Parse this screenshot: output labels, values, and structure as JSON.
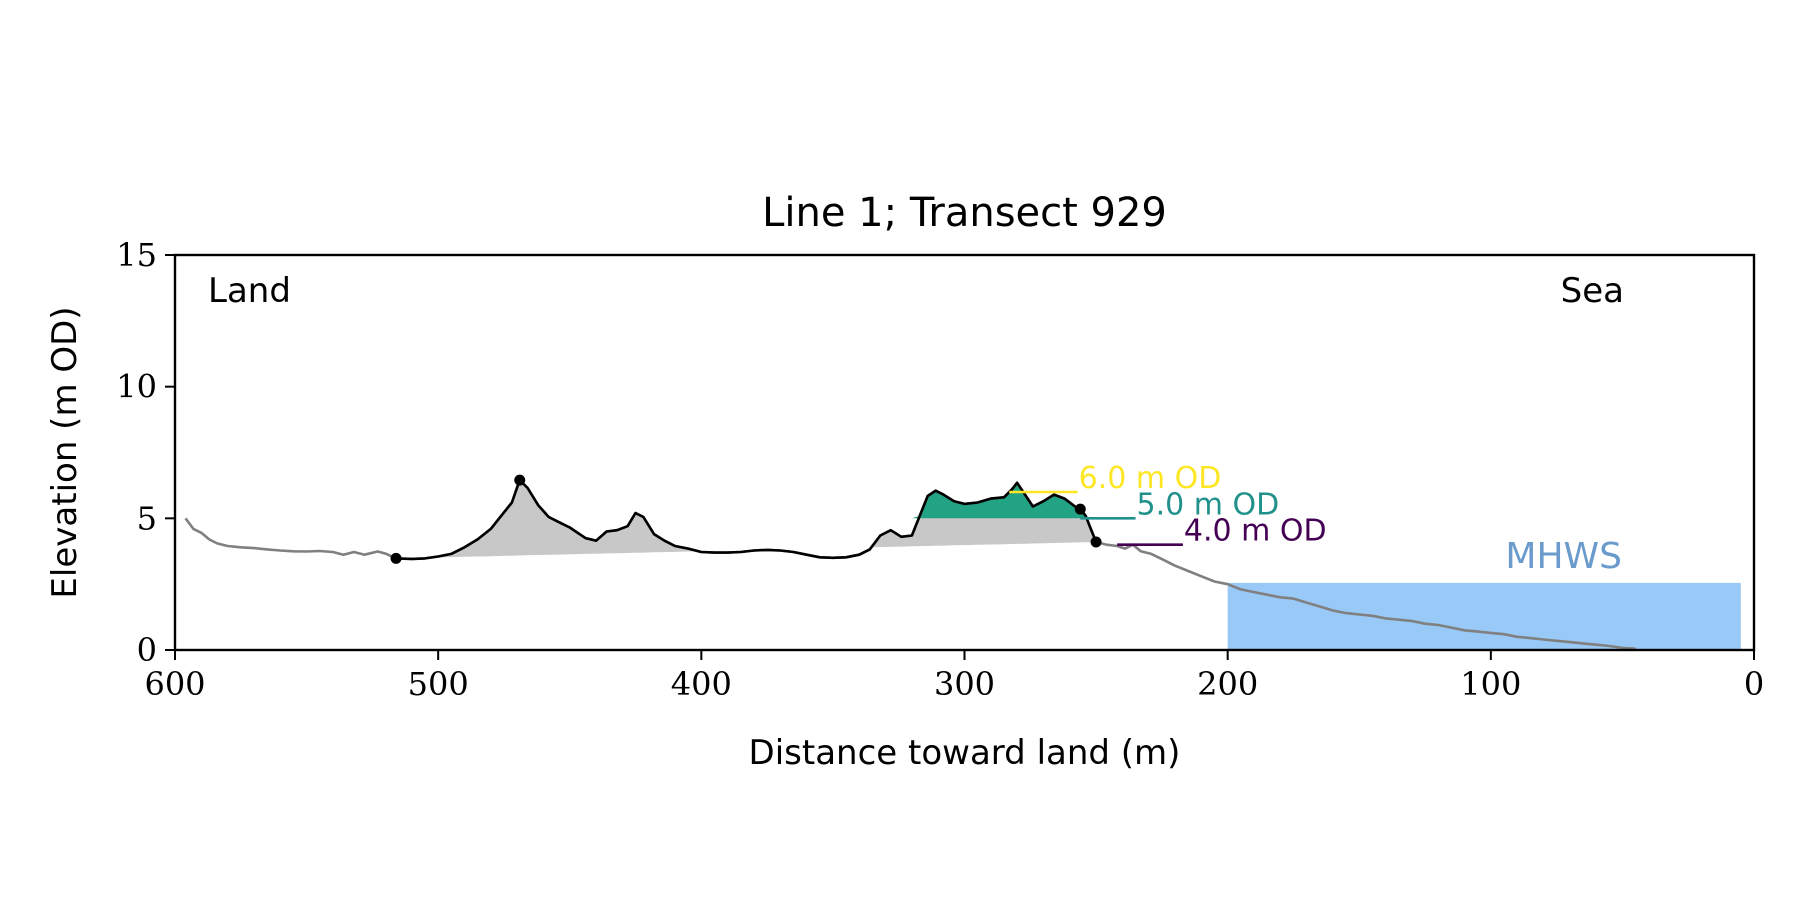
{
  "chart_data": {
    "type": "area",
    "title": "Line 1; Transect 929",
    "xlabel": "Distance toward land (m)",
    "ylabel": "Elevation (m OD)",
    "xlim": [
      600,
      0
    ],
    "ylim": [
      0,
      15
    ],
    "x_ticks": [
      600,
      500,
      400,
      300,
      200,
      100,
      0
    ],
    "y_ticks": [
      0,
      5,
      10,
      15
    ],
    "grid": false,
    "corner_labels": {
      "left": "Land",
      "right": "Sea"
    },
    "mhws": {
      "label": "MHWS",
      "elevation": 2.55,
      "x_from": 200,
      "x_to": 5,
      "color": "#99c9f7",
      "label_color": "#6a9bcc"
    },
    "profile_full": {
      "color": "#808080",
      "points": [
        [
          596,
          5.0
        ],
        [
          593,
          4.6
        ],
        [
          590,
          4.45
        ],
        [
          587,
          4.2
        ],
        [
          584,
          4.05
        ],
        [
          580,
          3.95
        ],
        [
          575,
          3.9
        ],
        [
          570,
          3.87
        ],
        [
          565,
          3.82
        ],
        [
          560,
          3.78
        ],
        [
          555,
          3.75
        ],
        [
          550,
          3.74
        ],
        [
          545,
          3.76
        ],
        [
          540,
          3.72
        ],
        [
          536,
          3.62
        ],
        [
          532,
          3.72
        ],
        [
          528,
          3.62
        ],
        [
          523,
          3.74
        ],
        [
          520,
          3.66
        ],
        [
          516,
          3.48
        ],
        [
          510,
          3.46
        ],
        [
          505,
          3.48
        ],
        [
          500,
          3.55
        ],
        [
          495,
          3.65
        ],
        [
          490,
          3.9
        ],
        [
          485,
          4.2
        ],
        [
          480,
          4.6
        ],
        [
          476,
          5.1
        ],
        [
          472,
          5.6
        ],
        [
          469,
          6.45
        ],
        [
          466,
          6.15
        ],
        [
          462,
          5.5
        ],
        [
          458,
          5.05
        ],
        [
          454,
          4.85
        ],
        [
          450,
          4.65
        ],
        [
          447,
          4.45
        ],
        [
          444,
          4.25
        ],
        [
          440,
          4.15
        ],
        [
          436,
          4.5
        ],
        [
          432,
          4.55
        ],
        [
          428,
          4.7
        ],
        [
          425,
          5.2
        ],
        [
          422,
          5.05
        ],
        [
          418,
          4.4
        ],
        [
          414,
          4.15
        ],
        [
          410,
          3.95
        ],
        [
          405,
          3.85
        ],
        [
          400,
          3.72
        ],
        [
          395,
          3.7
        ],
        [
          390,
          3.7
        ],
        [
          385,
          3.72
        ],
        [
          380,
          3.78
        ],
        [
          375,
          3.8
        ],
        [
          370,
          3.78
        ],
        [
          365,
          3.72
        ],
        [
          360,
          3.62
        ],
        [
          355,
          3.52
        ],
        [
          350,
          3.5
        ],
        [
          345,
          3.52
        ],
        [
          340,
          3.62
        ],
        [
          336,
          3.82
        ],
        [
          332,
          4.35
        ],
        [
          328,
          4.55
        ],
        [
          324,
          4.3
        ],
        [
          320,
          4.35
        ],
        [
          317,
          5.1
        ],
        [
          314,
          5.85
        ],
        [
          311,
          6.05
        ],
        [
          308,
          5.9
        ],
        [
          304,
          5.65
        ],
        [
          300,
          5.55
        ],
        [
          295,
          5.6
        ],
        [
          290,
          5.75
        ],
        [
          285,
          5.8
        ],
        [
          282,
          6.1
        ],
        [
          280,
          6.35
        ],
        [
          277,
          5.9
        ],
        [
          274,
          5.45
        ],
        [
          270,
          5.65
        ],
        [
          266,
          5.9
        ],
        [
          262,
          5.75
        ],
        [
          258,
          5.45
        ],
        [
          256,
          5.35
        ],
        [
          254,
          5.1
        ],
        [
          252,
          4.6
        ],
        [
          250,
          4.1
        ],
        [
          246,
          4.0
        ],
        [
          242,
          3.95
        ],
        [
          239,
          3.85
        ],
        [
          236,
          4.0
        ],
        [
          233,
          3.75
        ],
        [
          229,
          3.65
        ],
        [
          225,
          3.45
        ],
        [
          220,
          3.2
        ],
        [
          215,
          3.0
        ],
        [
          210,
          2.8
        ],
        [
          205,
          2.6
        ],
        [
          200,
          2.5
        ],
        [
          195,
          2.3
        ],
        [
          190,
          2.2
        ],
        [
          185,
          2.1
        ],
        [
          180,
          2.0
        ],
        [
          175,
          1.95
        ],
        [
          170,
          1.8
        ],
        [
          165,
          1.65
        ],
        [
          160,
          1.5
        ],
        [
          155,
          1.4
        ],
        [
          150,
          1.35
        ],
        [
          145,
          1.3
        ],
        [
          140,
          1.2
        ],
        [
          135,
          1.15
        ],
        [
          130,
          1.1
        ],
        [
          125,
          1.0
        ],
        [
          120,
          0.95
        ],
        [
          115,
          0.85
        ],
        [
          110,
          0.75
        ],
        [
          105,
          0.7
        ],
        [
          100,
          0.65
        ],
        [
          95,
          0.6
        ],
        [
          90,
          0.5
        ],
        [
          85,
          0.45
        ],
        [
          80,
          0.4
        ],
        [
          75,
          0.35
        ],
        [
          70,
          0.3
        ],
        [
          65,
          0.25
        ],
        [
          60,
          0.2
        ],
        [
          55,
          0.15
        ],
        [
          50,
          0.08
        ],
        [
          45,
          0.05
        ]
      ]
    },
    "dune_segment": {
      "color": "#000000",
      "x_start": 516,
      "x_end": 250,
      "markers": [
        [
          516,
          3.48
        ],
        [
          469,
          6.45
        ],
        [
          256,
          5.35
        ],
        [
          250,
          4.1
        ]
      ]
    },
    "dune_base_fill": {
      "color": "#c8c8c8"
    },
    "volume_fill": {
      "color": "#21a384",
      "elevation": 5.0
    },
    "levels": [
      {
        "label": "6.0 m OD",
        "elevation": 6.0,
        "x_from": 283,
        "x_to": 257,
        "color": "#fde725"
      },
      {
        "label": "5.0 m OD",
        "elevation": 5.0,
        "x_from": 256,
        "x_to": 235,
        "color": "#21918c"
      },
      {
        "label": "4.0 m OD",
        "elevation": 4.0,
        "x_from": 242,
        "x_to": 217,
        "color": "#440154"
      }
    ]
  }
}
